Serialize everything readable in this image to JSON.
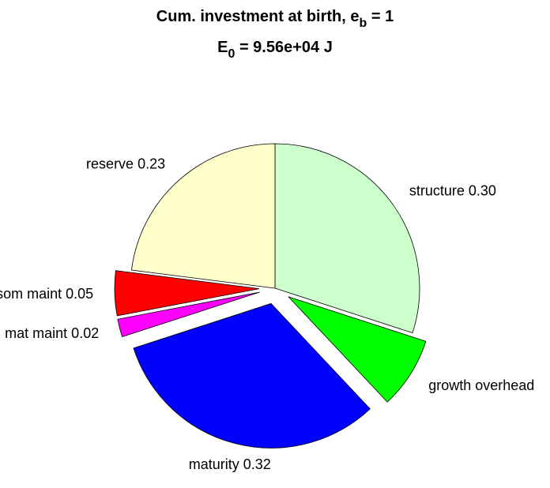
{
  "chart_data": {
    "type": "pie",
    "title": {
      "main": "Cum. investment at birth, e",
      "sub": "b",
      "after": " = 1"
    },
    "subtitle": {
      "main": "E",
      "sub": "0",
      "after": " = 9.56e+04 J"
    },
    "categories": [
      "structure 0.30",
      "growth overhead",
      "maturity 0.32",
      "mat maint 0.02",
      "som maint 0.05",
      "reserve 0.23"
    ],
    "values": [
      0.3,
      0.08,
      0.32,
      0.02,
      0.05,
      0.23
    ],
    "colors": [
      "#ccffcc",
      "#00ff00",
      "#0000ff",
      "#ff00ff",
      "#ff0000",
      "#ffffcc"
    ],
    "explode": [
      false,
      true,
      true,
      true,
      true,
      false
    ],
    "start_angle": 90,
    "direction": "clockwise"
  }
}
